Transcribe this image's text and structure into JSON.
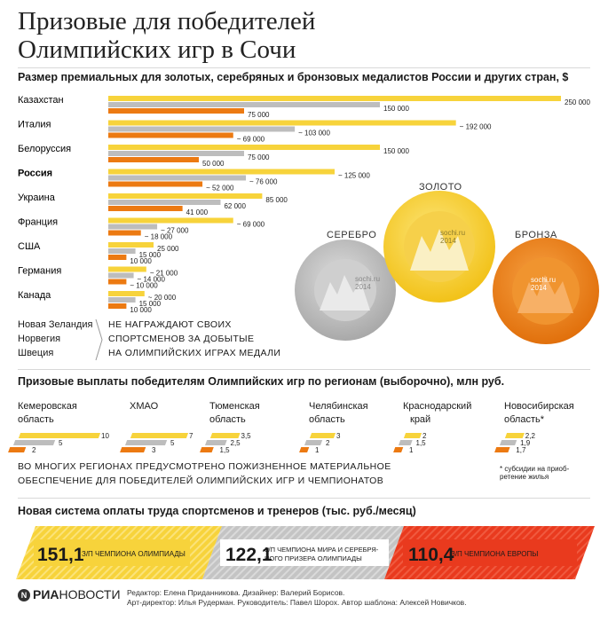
{
  "title_line1": "Призовые для победителей",
  "title_line2": "Олимпийских игр в Сочи",
  "section1_title": "Размер премиальных для золотых, серебряных и бронзовых медалистов России и других стран, $",
  "colors": {
    "gold": "#f7d33b",
    "silver": "#bdbdbd",
    "bronze": "#ec7a12",
    "red": "#e93a1e"
  },
  "chart_data": [
    {
      "type": "bar",
      "categories": [
        "Казахстан",
        "Италия",
        "Белоруссия",
        "Россия",
        "Украина",
        "Франция",
        "США",
        "Германия",
        "Канада"
      ],
      "series": [
        {
          "values": [
            250000,
            192000,
            150000,
            125000,
            85000,
            69000,
            25000,
            21000,
            20000
          ],
          "labels": [
            "250 000",
            "~ 192 000",
            "150 000",
            "~ 125 000",
            "85 000",
            "~ 69 000",
            "25 000",
            "~ 21 000",
            "~ 20 000"
          ]
        },
        {
          "values": [
            150000,
            103000,
            75000,
            76000,
            62000,
            27000,
            15000,
            14000,
            15000
          ],
          "labels": [
            "150 000",
            "~ 103 000",
            "75 000",
            "~ 76 000",
            "62 000",
            "~ 27 000",
            "15 000",
            "~ 14 000",
            "15 000"
          ]
        },
        {
          "values": [
            75000,
            69000,
            50000,
            52000,
            41000,
            18000,
            10000,
            10000,
            10000
          ],
          "labels": [
            "75 000",
            "~ 69 000",
            "50 000",
            "~ 52 000",
            "41 000",
            "~ 18 000",
            "10 000",
            "~ 10 000",
            "10 000"
          ]
        }
      ]
    },
    {
      "type": "bar",
      "categories": [
        "Кемеровская область",
        "ХМАО",
        "Тюменская область",
        "Челябинская область",
        "Краснодарский край",
        "Новосибирская область*"
      ],
      "series": [
        {
          "values": [
            10,
            7,
            3.5,
            3,
            2,
            2.2
          ],
          "labels": [
            "10",
            "7",
            "3,5",
            "3",
            "2",
            "2,2"
          ]
        },
        {
          "values": [
            5,
            5,
            2.5,
            2,
            1.5,
            1.9
          ],
          "labels": [
            "5",
            "5",
            "2,5",
            "2",
            "1,5",
            "1,9"
          ]
        },
        {
          "values": [
            2,
            3,
            1.5,
            1,
            1,
            1.7
          ],
          "labels": [
            "2",
            "3",
            "1,5",
            "1",
            "1",
            "1,7"
          ]
        }
      ]
    }
  ],
  "no_award_countries": [
    "Новая Зеландия",
    "Норвегия",
    "Швеция"
  ],
  "no_award_text": [
    "НЕ НАГРАЖДАЮТ СВОИХ",
    "СПОРТСМЕНОВ ЗА ДОБЫТЫЕ",
    "НА ОЛИМПИЙСКИХ ИГРАХ МЕДАЛИ"
  ],
  "medals": {
    "gold_label": "ЗОЛОТО",
    "silver_label": "СЕРЕБРО",
    "bronze_label": "БРОНЗА",
    "brand_line1": "sochi.ru",
    "brand_line2": "2014"
  },
  "section2_title": "Призовые выплаты победителям Олимпийских игр по регионам (выборочно), млн руб.",
  "regions": [
    {
      "line1": "Кемеровская",
      "line2": "область"
    },
    {
      "line1": "ХМАО",
      "line2": ""
    },
    {
      "line1": "Тюменская",
      "line2": "область"
    },
    {
      "line1": "Челябинская",
      "line2": "область"
    },
    {
      "line1": "Краснодарский",
      "line2": "край"
    },
    {
      "line1": "Новосибирская",
      "line2": "область*"
    }
  ],
  "regions_note": [
    "ВО МНОГИХ РЕГИОНАХ ПРЕДУСМОТРЕНО ПОЖИЗНЕННОЕ МАТЕРИАЛЬНОЕ",
    "ОБЕСПЕЧЕНИЕ ДЛЯ ПОБЕДИТЕЛЕЙ ОЛИМПИЙСКИХ ИГР И ЧЕМПИОНАТОВ"
  ],
  "footnote": [
    "* субсидии на приоб-",
    "ретение жилья"
  ],
  "section3_title": "Новая система оплаты труда спортсменов и тренеров (тыс. руб./месяц)",
  "salary": [
    {
      "value": "151,1",
      "label_line1": "З/П ЧЕМПИОНА ОЛИМПИАДЫ",
      "label_line2": "",
      "color": "#f7d33b"
    },
    {
      "value": "122,1",
      "label_line1": "З/П ЧЕМПИОНА МИРА И СЕРЕБРЯ-",
      "label_line2": "НОГО ПРИЗЕРА ОЛИМПИАДЫ",
      "color": "#c7c7c7"
    },
    {
      "value": "110,4",
      "label_line1": "З/П ЧЕМПИОНА ЕВРОПЫ",
      "label_line2": "",
      "color": "#e93a1e"
    }
  ],
  "logo_text": "РИА",
  "logo_text2": "НОВОСТИ",
  "logo_mark": "N",
  "credits_line1": "Редактор: Елена Приданникова. Дизайнер: Валерий Борисов.",
  "credits_line2": "Арт-директор: Илья Рудерман. Руководитель: Павел Шорох. Автор шаблона: Алексей Новичков."
}
